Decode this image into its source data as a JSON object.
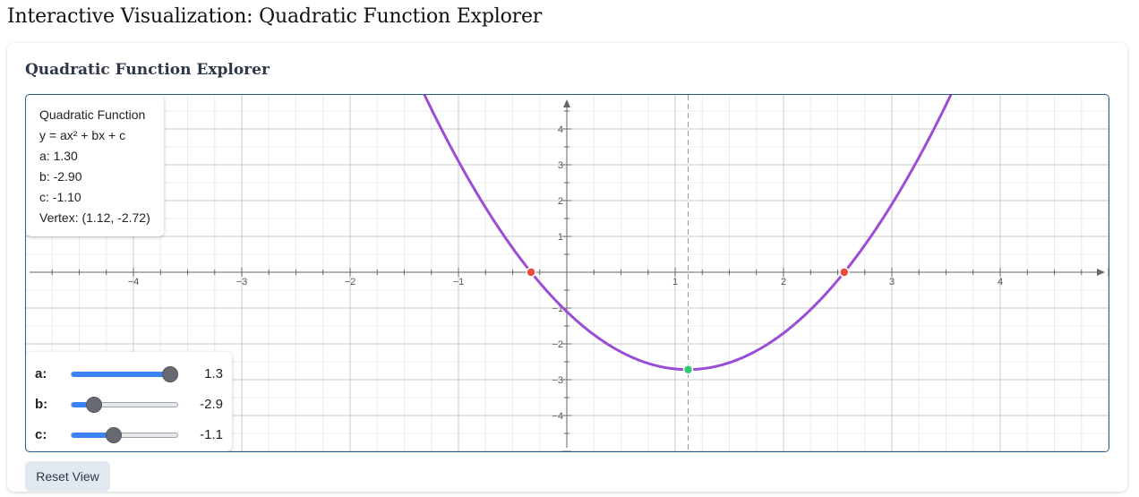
{
  "page": {
    "title": "Interactive Visualization: Quadratic Function Explorer"
  },
  "card": {
    "title": "Quadratic Function Explorer"
  },
  "info": {
    "heading": "Quadratic Function",
    "formula": "y = ax² + bx + c",
    "a_text": "a: 1.30",
    "b_text": "b: -2.90",
    "c_text": "c: -1.10",
    "vertex_text": "Vertex: (1.12, -2.72)"
  },
  "sliders": [
    {
      "id": "a",
      "label": "a:",
      "value": 1.3,
      "display": "1.3",
      "min": -5,
      "max": 1.9
    },
    {
      "id": "b",
      "label": "b:",
      "value": -2.9,
      "display": "-2.9",
      "min": -5,
      "max": 5
    },
    {
      "id": "c",
      "label": "c:",
      "value": -1.1,
      "display": "-1.1",
      "min": -5,
      "max": 5
    }
  ],
  "reset_label": "Reset View",
  "colors": {
    "curve": "#9b4dd6",
    "root_point": "#e74c3c",
    "vertex_point": "#2ecc71",
    "axis": "#666666",
    "grid_major": "#c8c8c8",
    "grid_minor": "#ececec",
    "board_border": "#2a5d8f",
    "slider_fill": "#3b82f6"
  },
  "chart_data": {
    "type": "line",
    "function": {
      "a": 1.3,
      "b": -2.9,
      "c": -1.1
    },
    "xlim": [
      -4.95,
      5
    ],
    "ylim": [
      -4.9,
      4.95
    ],
    "x_ticks": [
      -4,
      -3,
      -2,
      -1,
      1,
      2,
      3,
      4
    ],
    "y_ticks": [
      -4,
      -3,
      -2,
      -1,
      1,
      2,
      3,
      4
    ],
    "vertex": {
      "x": 1.12,
      "y": -2.72
    },
    "roots": [
      -0.33,
      2.56
    ],
    "axis_of_symmetry": 1.12,
    "grid": true
  }
}
